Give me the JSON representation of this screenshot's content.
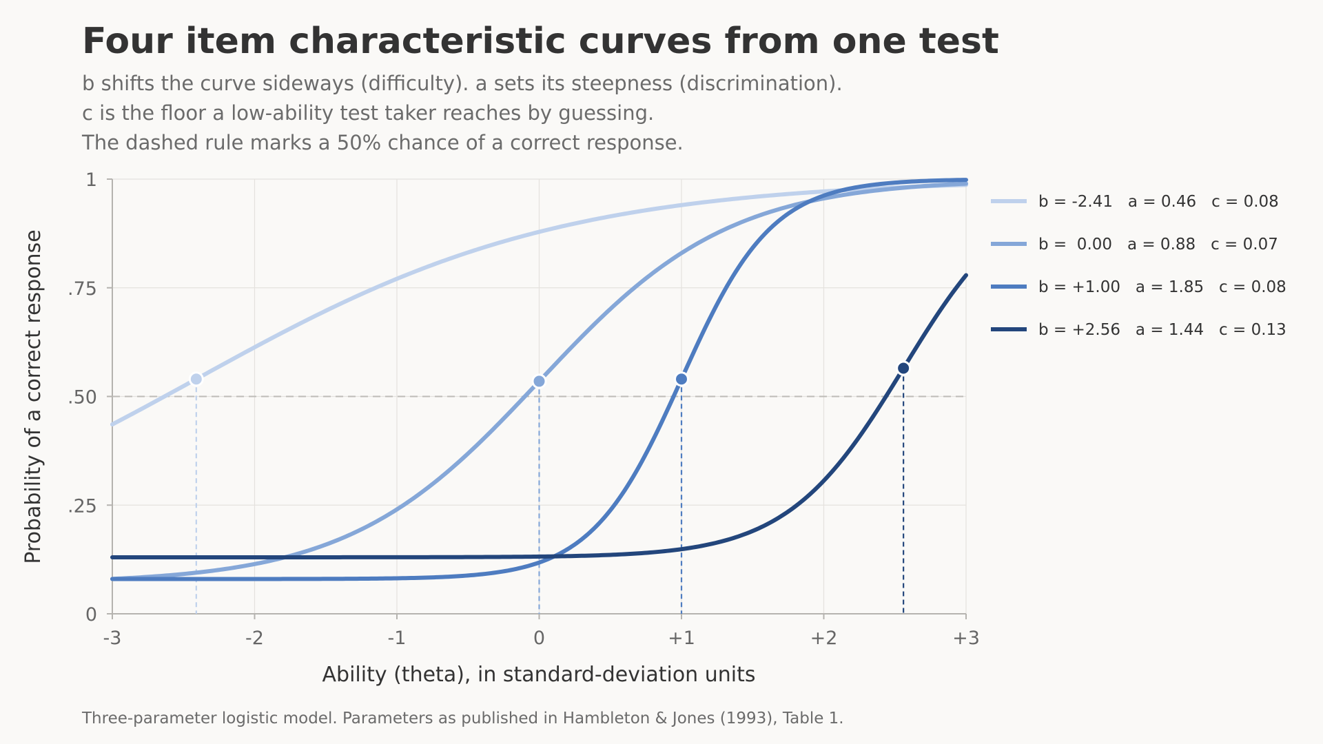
{
  "chart_data": {
    "type": "line",
    "title": "Four item characteristic curves from one test",
    "subtitle": [
      "b shifts the curve sideways (difficulty). a sets its steepness (discrimination).",
      "c is the floor a low-ability test taker reaches by guessing.",
      "The dashed rule marks a 50% chance of a correct response."
    ],
    "xlabel": "Ability (theta), in standard-deviation units",
    "ylabel": "Probability of a correct response",
    "xlim": [
      -3,
      3
    ],
    "ylim": [
      0,
      1
    ],
    "x_ticks": [
      {
        "value": -3,
        "label": "-3"
      },
      {
        "value": -2,
        "label": "-2"
      },
      {
        "value": -1,
        "label": "-1"
      },
      {
        "value": 0,
        "label": "0"
      },
      {
        "value": 1,
        "label": "+1"
      },
      {
        "value": 2,
        "label": "+2"
      },
      {
        "value": 3,
        "label": "+3"
      }
    ],
    "y_ticks": [
      {
        "value": 0,
        "label": "0"
      },
      {
        "value": 0.25,
        "label": ".25"
      },
      {
        "value": 0.5,
        "label": ".50"
      },
      {
        "value": 0.75,
        "label": ".75"
      },
      {
        "value": 1,
        "label": "1"
      }
    ],
    "grid": true,
    "reference_line": {
      "y": 0.5,
      "style": "dashed"
    },
    "model": "three-parameter logistic",
    "series": [
      {
        "name": "b = -2.41   a = 0.46   c = 0.08",
        "b": -2.41,
        "a": 0.46,
        "c": 0.08,
        "color": "#bfd1ec"
      },
      {
        "name": "b =  0.00   a = 0.88   c = 0.07",
        "b": 0.0,
        "a": 0.88,
        "c": 0.07,
        "color": "#85a7d8"
      },
      {
        "name": "b = +1.00   a = 1.85   c = 0.08",
        "b": 1.0,
        "a": 1.85,
        "c": 0.08,
        "color": "#4e7cc0"
      },
      {
        "name": "b = +2.56   a = 1.44   c = 0.13",
        "b": 2.56,
        "a": 1.44,
        "c": 0.13,
        "color": "#23467c"
      }
    ],
    "legend_position": "right",
    "footnote": "Three-parameter logistic model. Parameters as published in Hambleton & Jones (1993), Table 1."
  }
}
